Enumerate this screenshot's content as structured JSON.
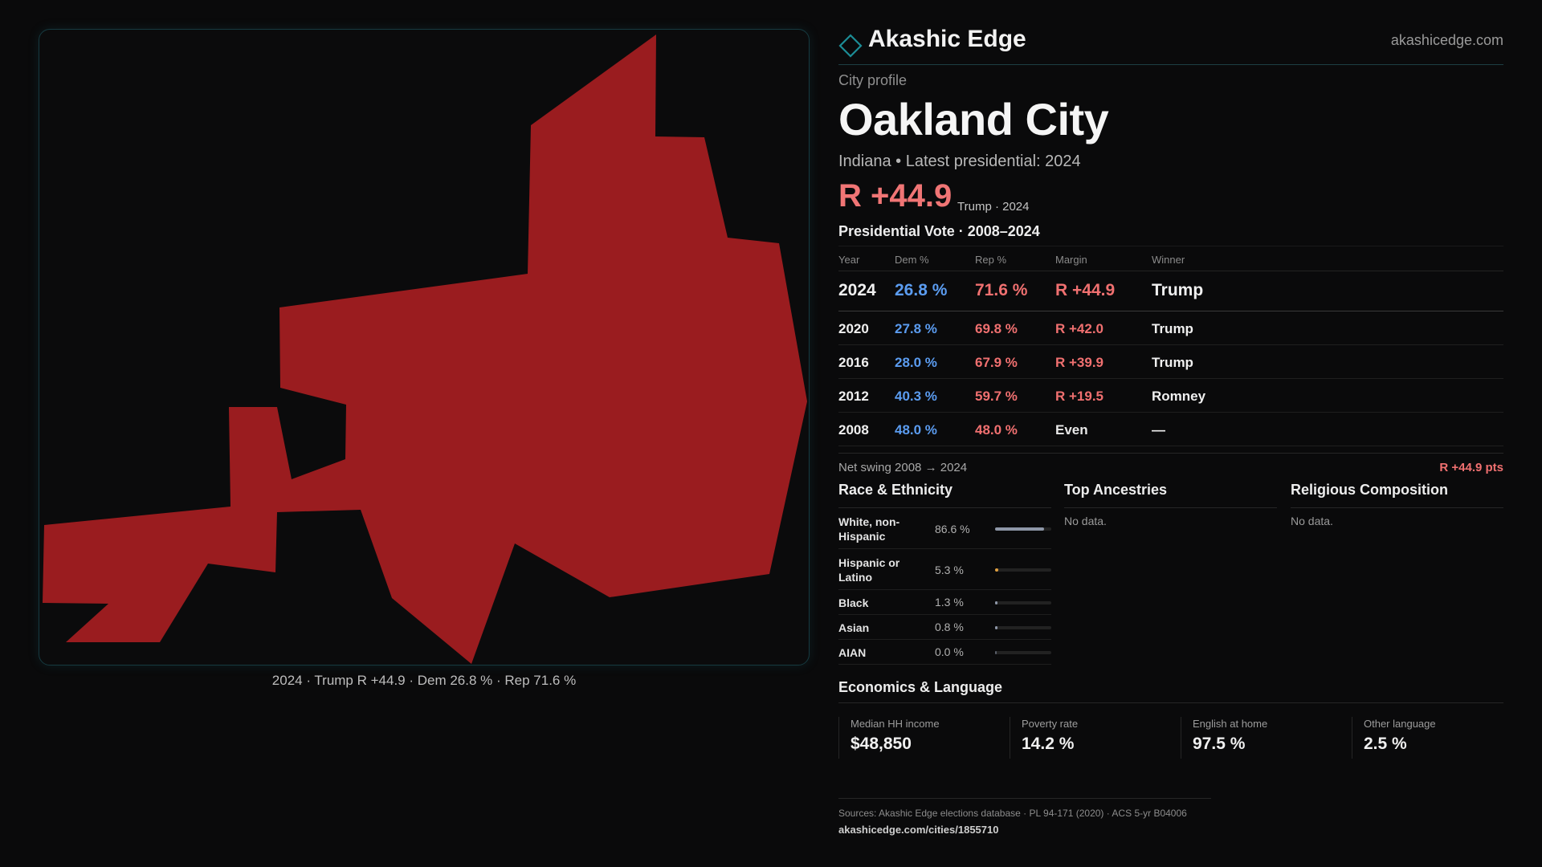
{
  "brand": {
    "name": "Akashic Edge",
    "domain": "akashicedge.com",
    "icon": "diamond-outline-icon",
    "accent": "#1c8d96"
  },
  "profile": {
    "eyebrow": "City profile",
    "city": "Oakland City",
    "subtitle": "Indiana • Latest presidential: 2024",
    "margin": "R +44.9",
    "margin_note": "Trump · 2024"
  },
  "map": {
    "caption": "2024 · Trump R +44.9 · Dem 26.8 % · Rep 71.6 %",
    "fill_color": "#9a1c1f"
  },
  "vote": {
    "title": "Presidential Vote · 2008–2024",
    "headers": {
      "year": "Year",
      "dem": "Dem %",
      "rep": "Rep %",
      "margin": "Margin",
      "winner": "Winner"
    },
    "rows": [
      {
        "year": "2024",
        "dem": "26.8 %",
        "rep": "71.6 %",
        "margin": "R +44.9",
        "winner": "Trump"
      },
      {
        "year": "2020",
        "dem": "27.8 %",
        "rep": "69.8 %",
        "margin": "R +42.0",
        "winner": "Trump"
      },
      {
        "year": "2016",
        "dem": "28.0 %",
        "rep": "67.9 %",
        "margin": "R +39.9",
        "winner": "Trump"
      },
      {
        "year": "2012",
        "dem": "40.3 %",
        "rep": "59.7 %",
        "margin": "R +19.5",
        "winner": "Romney"
      },
      {
        "year": "2008",
        "dem": "48.0 %",
        "rep": "48.0 %",
        "margin": "Even",
        "winner": "—"
      }
    ],
    "swing_label": "Net swing 2008 → 2024",
    "swing_value": "R +44.9 pts",
    "colors": {
      "dem": "#5b9cf0",
      "rep": "#f07070"
    }
  },
  "race": {
    "title": "Race & Ethnicity",
    "rows": [
      {
        "label": "White, non-Hispanic",
        "pct": "86.6 %",
        "fraction": 0.866,
        "color": "#8e97a8"
      },
      {
        "label": "Hispanic or Latino",
        "pct": "5.3 %",
        "fraction": 0.053,
        "color": "#e0a040"
      },
      {
        "label": "Black",
        "pct": "1.3 %",
        "fraction": 0.013,
        "color": "#8e97a8"
      },
      {
        "label": "Asian",
        "pct": "0.8 %",
        "fraction": 0.008,
        "color": "#8e97a8"
      },
      {
        "label": "AIAN",
        "pct": "0.0 %",
        "fraction": 0.0,
        "color": "#8e97a8"
      }
    ]
  },
  "ancestries": {
    "title": "Top Ancestries",
    "empty": "No data."
  },
  "religion": {
    "title": "Religious Composition",
    "empty": "No data."
  },
  "economics": {
    "title": "Economics & Language",
    "items": [
      {
        "label": "Median HH income",
        "value": "$48,850"
      },
      {
        "label": "Poverty rate",
        "value": "14.2 %"
      },
      {
        "label": "English at home",
        "value": "97.5 %"
      },
      {
        "label": "Other language",
        "value": "2.5 %"
      }
    ]
  },
  "footer": {
    "sources": "Sources: Akashic Edge elections database · PL 94-171 (2020) · ACS 5-yr B04006",
    "url": "akashicedge.com/cities/1855710"
  }
}
